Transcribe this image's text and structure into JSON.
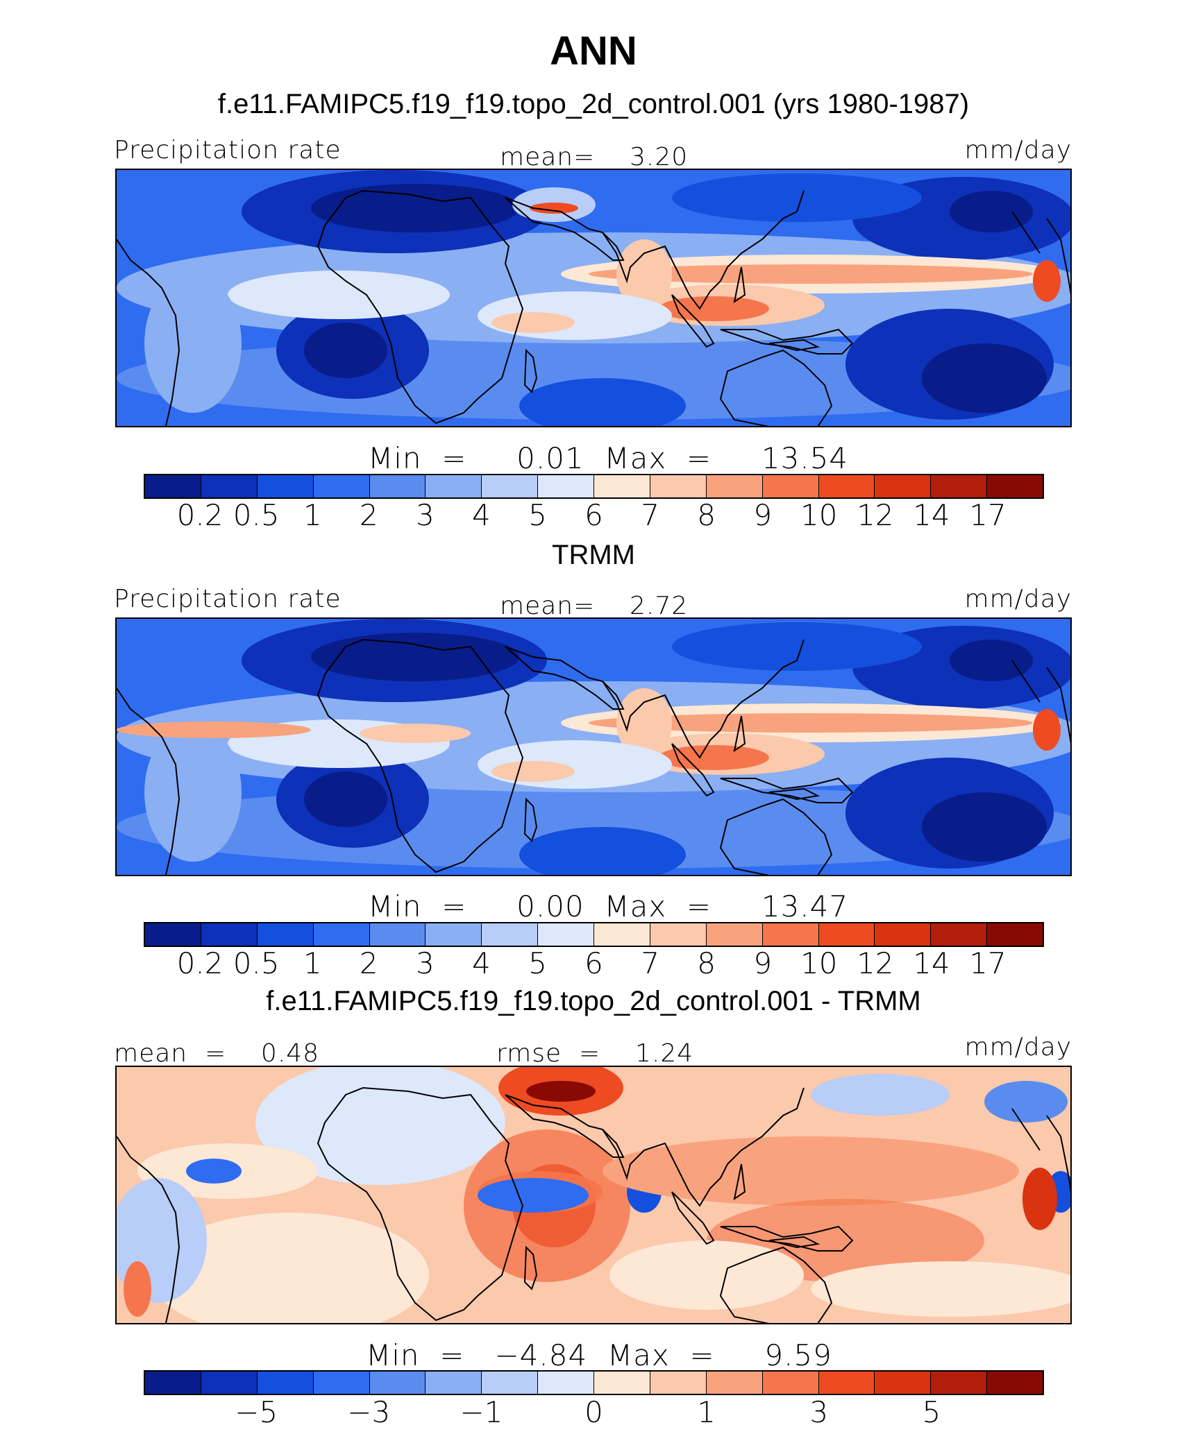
{
  "title": "ANN",
  "panels": [
    {
      "subtitle": "f.e11.FAMIPC5.f19_f19.topo_2d_control.001 (yrs 1980-1987)",
      "left_label": "Precipitation rate",
      "center_label": "mean=    3.20",
      "units": "mm/day",
      "minmax": "Min  =     0.01  Max  =     13.54",
      "ticks": [
        "0.2",
        "0.5",
        "1",
        "2",
        "3",
        "4",
        "5",
        "6",
        "7",
        "8",
        "9",
        "10",
        "12",
        "14",
        "17"
      ]
    },
    {
      "subtitle": "TRMM",
      "left_label": "Precipitation rate",
      "center_label": "mean=    2.72",
      "units": "mm/day",
      "minmax": "Min  =     0.00  Max  =     13.47",
      "ticks": [
        "0.2",
        "0.5",
        "1",
        "2",
        "3",
        "4",
        "5",
        "6",
        "7",
        "8",
        "9",
        "10",
        "12",
        "14",
        "17"
      ]
    },
    {
      "subtitle": "f.e11.FAMIPC5.f19_f19.topo_2d_control.001 - TRMM",
      "left_label": "mean  =    0.48",
      "center_label": "rmse  =    1.24",
      "units": "mm/day",
      "minmax": "Min  =   −4.84  Max  =     9.59",
      "ticks": [
        "−5",
        "−3",
        "−1",
        "0",
        "1",
        "3",
        "5"
      ]
    }
  ],
  "colorbar_colors": [
    "#081d8a",
    "#0d31b8",
    "#1450dd",
    "#2f6cf0",
    "#5a8cf0",
    "#8aaff3",
    "#b8cdf7",
    "#dde8fb",
    "#fde8d6",
    "#fbc9ac",
    "#f8a37e",
    "#f5764c",
    "#ee4b22",
    "#d93310",
    "#b21e0b",
    "#890a05"
  ]
}
